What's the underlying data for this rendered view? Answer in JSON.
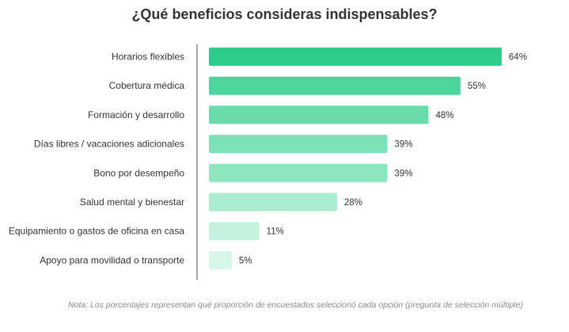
{
  "chart_data": {
    "type": "bar",
    "orientation": "horizontal",
    "title": "¿Qué beneficios consideras indispensables?",
    "categories": [
      "Horarios flexibles",
      "Cobertura médica",
      "Formación y desarrollo",
      "Días libres / vacaciones adicionales",
      "Bono por desempeño",
      "Salud mental y bienestar",
      "Equipamiento o gastos de oficina en casa",
      "Apoyo para movilidad o transporte"
    ],
    "values": [
      64,
      55,
      48,
      39,
      39,
      28,
      11,
      5
    ],
    "value_labels": [
      "64%",
      "55%",
      "48%",
      "39%",
      "39%",
      "28%",
      "11%",
      "5%"
    ],
    "value_unit": "%",
    "colors": [
      "#2ecc8a",
      "#4dd69c",
      "#6adcaa",
      "#7de2b6",
      "#8ee6bf",
      "#a9eccf",
      "#c5f2de",
      "#d8f6e8"
    ],
    "xlim": [
      0,
      100
    ],
    "grid": false,
    "legend": "none",
    "note": "Nota: Los porcentajes representan qué proporción de encuestados seleccionó cada opción (pregunta de selección múltiple)"
  }
}
